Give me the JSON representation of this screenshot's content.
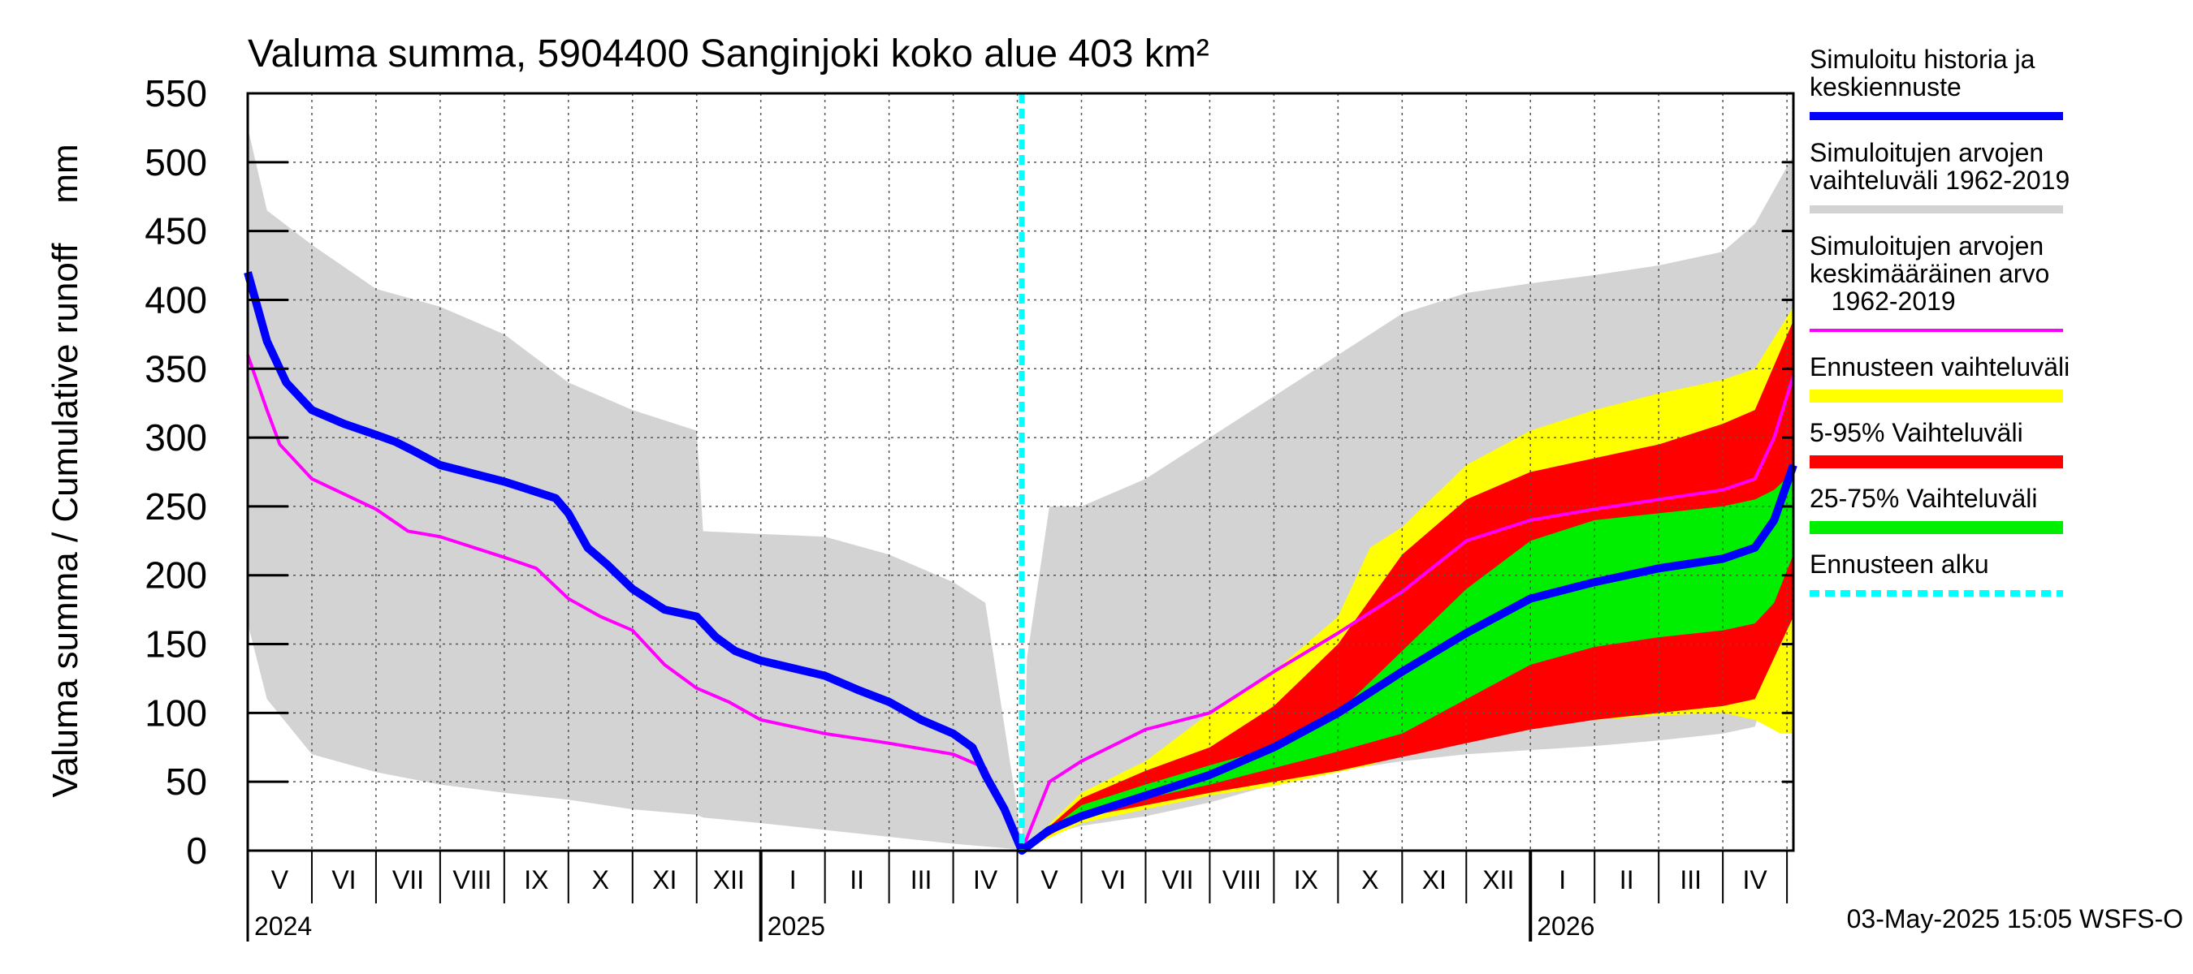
{
  "chart_data": {
    "type": "area",
    "title": "Valuma summa, 5904400 Sanginjoki koko alue 403 km²",
    "ylabel": "Valuma summa / Cumulative runoff    mm",
    "xlabel": "",
    "ylim": [
      0,
      550
    ],
    "yticks": [
      0,
      50,
      100,
      150,
      200,
      250,
      300,
      350,
      400,
      450,
      500,
      550
    ],
    "x_unit": "months since 1 May 2024",
    "xlim": [
      0,
      24.1
    ],
    "forecast_start": 12.07,
    "month_labels": [
      {
        "label": "V",
        "x": 0.5
      },
      {
        "label": "VI",
        "x": 1.5
      },
      {
        "label": "VII",
        "x": 2.5
      },
      {
        "label": "VIII",
        "x": 3.5
      },
      {
        "label": "IX",
        "x": 4.5
      },
      {
        "label": "X",
        "x": 5.5
      },
      {
        "label": "XI",
        "x": 6.5
      },
      {
        "label": "XII",
        "x": 7.5
      },
      {
        "label": "I",
        "x": 8.5
      },
      {
        "label": "II",
        "x": 9.5
      },
      {
        "label": "III",
        "x": 10.5
      },
      {
        "label": "IV",
        "x": 11.5
      },
      {
        "label": "V",
        "x": 12.5
      },
      {
        "label": "VI",
        "x": 13.5
      },
      {
        "label": "VII",
        "x": 14.5
      },
      {
        "label": "VIII",
        "x": 15.5
      },
      {
        "label": "IX",
        "x": 16.5
      },
      {
        "label": "X",
        "x": 17.5
      },
      {
        "label": "XI",
        "x": 18.5
      },
      {
        "label": "XII",
        "x": 19.5
      },
      {
        "label": "I",
        "x": 20.5
      },
      {
        "label": "II",
        "x": 21.5
      },
      {
        "label": "III",
        "x": 22.5
      },
      {
        "label": "IV",
        "x": 23.5
      }
    ],
    "year_labels": [
      {
        "label": "2024",
        "x": 0
      },
      {
        "label": "2025",
        "x": 8
      },
      {
        "label": "2026",
        "x": 20
      }
    ],
    "year_boundaries": [
      8,
      20
    ],
    "series": [
      {
        "name": "Simuloitujen arvojen vaihteluväli 1962-2019",
        "kind": "band",
        "color": "#d3d3d3",
        "x": [
          0,
          0.3,
          1,
          2,
          3,
          4,
          5,
          6,
          7,
          7.1,
          8,
          9,
          10,
          11,
          11.5,
          12.0,
          12.07,
          12.15,
          12.5,
          13,
          14,
          15,
          16,
          17,
          18,
          19,
          20,
          21,
          22,
          23,
          23.5,
          24.1
        ],
        "upper": [
          525,
          465,
          440,
          408,
          395,
          375,
          340,
          320,
          305,
          232,
          230,
          228,
          215,
          195,
          180,
          30,
          0,
          140,
          250,
          250,
          270,
          300,
          330,
          360,
          390,
          405,
          412,
          418,
          425,
          435,
          455,
          505
        ],
        "lower": [
          165,
          110,
          70,
          57,
          48,
          42,
          37,
          30,
          26,
          24,
          20,
          15,
          10,
          5,
          3,
          1,
          0,
          5,
          12,
          18,
          25,
          35,
          48,
          58,
          65,
          70,
          73,
          76,
          80,
          85,
          90,
          175
        ]
      },
      {
        "name": "Ennusteen vaihteluväli",
        "kind": "band",
        "color": "#ffff00",
        "x": [
          12.07,
          13,
          14,
          15,
          16,
          17,
          17.5,
          18,
          19,
          20,
          21,
          22,
          23,
          23.5,
          23.9,
          24.1
        ],
        "upper": [
          0,
          42,
          65,
          100,
          130,
          170,
          220,
          235,
          280,
          305,
          320,
          332,
          342,
          350,
          380,
          395
        ],
        "lower": [
          0,
          20,
          30,
          40,
          47,
          57,
          62,
          70,
          80,
          90,
          95,
          98,
          100,
          95,
          85,
          85
        ]
      },
      {
        "name": "5-95% Vaihteluväli",
        "kind": "band",
        "color": "#ff0000",
        "x": [
          12.07,
          13,
          14,
          15,
          16,
          17,
          18,
          19,
          20,
          21,
          22,
          23,
          23.5,
          24.1
        ],
        "upper": [
          0,
          38,
          58,
          75,
          105,
          150,
          215,
          255,
          275,
          285,
          295,
          310,
          320,
          385
        ],
        "lower": [
          0,
          24,
          33,
          42,
          50,
          58,
          68,
          78,
          88,
          95,
          100,
          105,
          110,
          170
        ]
      },
      {
        "name": "25-75% Vaihteluväli",
        "kind": "band",
        "color": "#00ee00",
        "x": [
          12.07,
          13,
          14,
          15,
          16,
          17,
          18,
          19,
          20,
          21,
          22,
          23,
          23.5,
          23.8,
          24.1
        ],
        "upper": [
          0,
          33,
          48,
          62,
          75,
          100,
          145,
          190,
          225,
          240,
          245,
          250,
          255,
          262,
          275
        ],
        "lower": [
          0,
          28,
          38,
          48,
          60,
          72,
          85,
          110,
          135,
          148,
          155,
          160,
          165,
          180,
          215
        ]
      },
      {
        "name": "Simuloitujen arvojen keskimääräinen arvo 1962-2019",
        "kind": "line",
        "color": "#ff00ff",
        "x": [
          0,
          0.3,
          0.5,
          1,
          2,
          2.5,
          3,
          4,
          4.5,
          5,
          5.5,
          6,
          6.5,
          7,
          7.5,
          8,
          9,
          10,
          11,
          11.5,
          12.07,
          12.5,
          13,
          14,
          15,
          16,
          17,
          18,
          19,
          20,
          21,
          22,
          23,
          23.5,
          23.8,
          24.1
        ],
        "y": [
          360,
          320,
          295,
          270,
          248,
          232,
          228,
          213,
          205,
          183,
          170,
          160,
          135,
          118,
          108,
          95,
          85,
          78,
          70,
          60,
          0,
          50,
          65,
          88,
          100,
          130,
          158,
          188,
          225,
          240,
          248,
          255,
          262,
          270,
          300,
          345
        ]
      },
      {
        "name": "Simuloitu historia ja keskiennuste",
        "kind": "line",
        "color": "#0000ff",
        "x": [
          0,
          0.3,
          0.6,
          1,
          1.5,
          2,
          2.3,
          2.6,
          3,
          4,
          4.8,
          5,
          5.3,
          5.6,
          6,
          6.5,
          7,
          7.3,
          7.6,
          8,
          9,
          9.5,
          10,
          10.5,
          11,
          11.3,
          11.5,
          11.8,
          12.07,
          12.5,
          13,
          14,
          15,
          16,
          17,
          18,
          19,
          20,
          21,
          22,
          23,
          23.5,
          23.8,
          24.1
        ],
        "y": [
          420,
          370,
          340,
          320,
          310,
          302,
          297,
          290,
          280,
          268,
          256,
          245,
          220,
          208,
          190,
          175,
          170,
          155,
          145,
          138,
          127,
          117,
          108,
          95,
          85,
          75,
          55,
          30,
          0,
          15,
          25,
          40,
          55,
          75,
          100,
          130,
          158,
          183,
          195,
          205,
          212,
          220,
          240,
          280
        ]
      },
      {
        "name": "Ennusteen alku",
        "kind": "vline",
        "color": "#00ffff"
      }
    ],
    "legend": {
      "placement": "right",
      "entries": [
        {
          "text": "Simuloitu historia ja\nkeskiennuste",
          "color": "#0000ff",
          "style": "line"
        },
        {
          "text": "Simuloitujen arvojen\nvaihteluväli 1962-2019",
          "color": "#d3d3d3",
          "style": "line"
        },
        {
          "text": "Simuloitujen arvojen\nkeskimääräinen arvo\n   1962-2019",
          "color": "#ff00ff",
          "style": "thin"
        },
        {
          "text": "Ennusteen vaihteluväli",
          "color": "#ffff00",
          "style": "bar"
        },
        {
          "text": "5-95% Vaihteluväli",
          "color": "#ff0000",
          "style": "bar"
        },
        {
          "text": "25-75% Vaihteluväli",
          "color": "#00ee00",
          "style": "bar"
        },
        {
          "text": "Ennusteen alku",
          "color": "#00ffff",
          "style": "dashed"
        }
      ]
    },
    "footer": "03-May-2025 15:05 WSFS-O"
  }
}
